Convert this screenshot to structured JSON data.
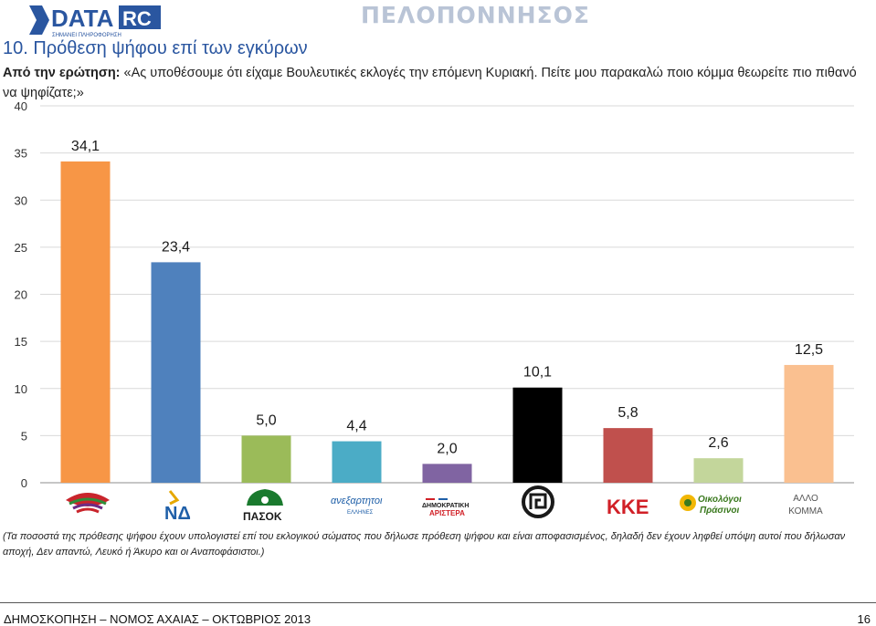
{
  "header": {
    "brand_main": "DATA",
    "brand_rc": "RC",
    "brand_tagline": "ΣΗΜΑΝΕΙ ΠΛΗΡΟΦΟΡΗΣΗ",
    "region": "ΠΕΛΟΠΟΝΝΗΣΟΣ"
  },
  "question": {
    "title": "10.  Πρόθεση ψήφου επί των εγκύρων",
    "label": "Από την ερώτηση:",
    "text": " «Ας υποθέσουμε ότι είχαμε Βουλευτικές εκλογές την επόμενη Κυριακή. Πείτε μου παρακαλώ ποιο κόμμα θεωρείτε πιο πιθανό να ψηφίζατε;»"
  },
  "chart_data": {
    "type": "bar",
    "ylim": [
      0,
      40
    ],
    "yticks": [
      "0",
      "5",
      "10",
      "15",
      "20",
      "25",
      "30",
      "35",
      "40"
    ],
    "grid": true,
    "categories": [
      "ΣΥΡΙΖΑ",
      "ΝΔ",
      "ΠΑΣΟΚ",
      "ΑΝΕΞΑΡΤΗΤΟΙ ΕΛΛΗΝΕΣ",
      "ΔΗΜΟΚΡΑΤΙΚΗ ΑΡΙΣΤΕΡΑ",
      "ΧΡΥΣΗ ΑΥΓΗ",
      "ΚΚΕ",
      "Οικολόγοι Πράσινοι",
      "ΑΛΛΟ ΚΟΜΜΑ"
    ],
    "values": [
      34.1,
      23.4,
      5.0,
      4.4,
      2.0,
      10.1,
      5.8,
      2.6,
      12.5
    ],
    "value_labels": [
      "34,1",
      "23,4",
      "5,0",
      "4,4",
      "2,0",
      "10,1",
      "5,8",
      "2,6",
      "12,5"
    ],
    "colors": [
      "#f79646",
      "#4f81bd",
      "#9bbb59",
      "#4bacc6",
      "#8064a2",
      "#000000",
      "#c0504d",
      "#c3d69b",
      "#fac090"
    ]
  },
  "logos": {
    "nd": "ΝΔ",
    "pasok": "ΠΑΣΟΚ",
    "anel": "ανεξαρτητοι",
    "anel_sub": "ΕΛΛΗΝΕΣ",
    "dimar_1": "ΔΗΜΟΚΡΑΤΙΚΗ",
    "dimar_2": "ΑΡΙΣΤΕΡΑ",
    "kke": "ΚΚΕ",
    "oikologoi_1": "Οικολόγοι",
    "oikologoi_2": "Πράσινοι",
    "allo_1": "ΑΛΛΟ",
    "allo_2": "ΚΟΜΜΑ"
  },
  "footnote": "(Τα ποσοστά της πρόθεσης ψήφου έχουν υπολογιστεί επί του εκλογικού σώματος που δήλωσε πρόθεση ψήφου και είναι αποφασισμένος, δηλαδή δεν έχουν ληφθεί υπόψη αυτοί που δήλωσαν αποχή, Δεν απαντώ, Λευκό ή Άκυρο και οι Αναποφάσιστοι.)",
  "footer": {
    "text": "ΔΗΜΟΣΚΟΠΗΣΗ – ΝΟΜΟΣ ΑΧΑΙΑΣ – ΟΚΤΩΒΡΙΟΣ 2013",
    "page": "16"
  }
}
